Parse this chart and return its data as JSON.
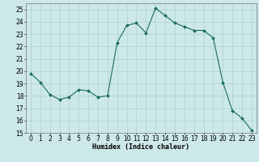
{
  "x": [
    0,
    1,
    2,
    3,
    4,
    5,
    6,
    7,
    8,
    9,
    10,
    11,
    12,
    13,
    14,
    15,
    16,
    17,
    18,
    19,
    20,
    21,
    22,
    23
  ],
  "y": [
    19.8,
    19.1,
    18.1,
    17.7,
    17.9,
    18.5,
    18.4,
    17.9,
    18.0,
    22.3,
    23.7,
    23.9,
    23.1,
    25.1,
    24.5,
    23.9,
    23.6,
    23.3,
    23.3,
    22.7,
    19.1,
    16.8,
    16.2,
    15.2
  ],
  "line_color": "#1a6b5a",
  "marker": "D",
  "marker_size": 2,
  "bg_color": "#cce8e8",
  "grid_color": "#aacccc",
  "xlabel": "Humidex (Indice chaleur)",
  "ylim": [
    15,
    25.5
  ],
  "xlim": [
    -0.5,
    23.5
  ],
  "yticks": [
    15,
    16,
    17,
    18,
    19,
    20,
    21,
    22,
    23,
    24,
    25
  ],
  "xticks": [
    0,
    1,
    2,
    3,
    4,
    5,
    6,
    7,
    8,
    9,
    10,
    11,
    12,
    13,
    14,
    15,
    16,
    17,
    18,
    19,
    20,
    21,
    22,
    23
  ],
  "xlabel_fontsize": 6,
  "tick_fontsize": 5.5
}
